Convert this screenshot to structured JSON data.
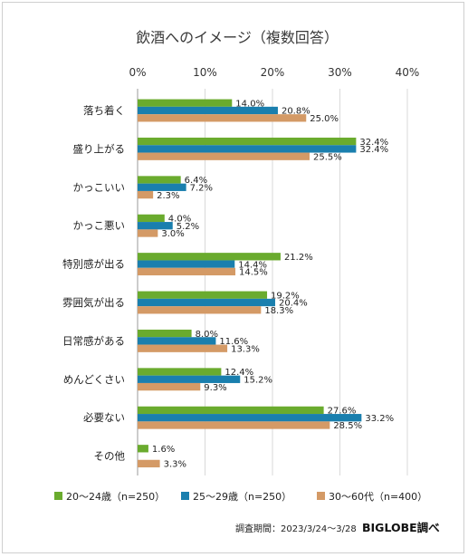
{
  "chart_data": {
    "type": "bar",
    "orientation": "horizontal",
    "title": "飲酒へのイメージ（複数回答）",
    "xlim": [
      0,
      40
    ],
    "xticks": [
      "0%",
      "10%",
      "20%",
      "30%",
      "40%"
    ],
    "categories": [
      "落ち着く",
      "盛り上がる",
      "かっこいい",
      "かっこ悪い",
      "特別感が出る",
      "雰囲気が出る",
      "日常感がある",
      "めんどくさい",
      "必要ない",
      "その他"
    ],
    "series": [
      {
        "name": "20～24歳（n=250）",
        "color": "#6aab2e",
        "values": [
          14.0,
          32.4,
          6.4,
          4.0,
          21.2,
          19.2,
          8.0,
          12.4,
          27.6,
          1.6
        ],
        "labels": [
          "14.0%",
          "32.4%",
          "6.4%",
          "4.0%",
          "21.2%",
          "19.2%",
          "8.0%",
          "12.4%",
          "27.6%",
          "1.6%"
        ]
      },
      {
        "name": "25～29歳（n=250）",
        "color": "#1a7fae",
        "values": [
          20.8,
          32.4,
          7.2,
          5.2,
          14.4,
          20.4,
          11.6,
          15.2,
          33.2,
          null
        ],
        "labels": [
          "20.8%",
          "32.4%",
          "7.2%",
          "5.2%",
          "14.4%",
          "20.4%",
          "11.6%",
          "15.2%",
          "33.2%",
          null
        ]
      },
      {
        "name": "30～60代（n=400）",
        "color": "#d49a66",
        "values": [
          25.0,
          25.5,
          2.3,
          3.0,
          14.5,
          18.3,
          13.3,
          9.3,
          28.5,
          3.3
        ],
        "labels": [
          "25.0%",
          "25.5%",
          "2.3%",
          "3.0%",
          "14.5%",
          "18.3%",
          "13.3%",
          "9.3%",
          "28.5%",
          "3.3%"
        ]
      }
    ],
    "grid": true,
    "legend_position": "bottom"
  },
  "footer": {
    "survey_period": "調査期間：2023/3/24～3/28",
    "brand": "BIGLOBE調べ"
  }
}
